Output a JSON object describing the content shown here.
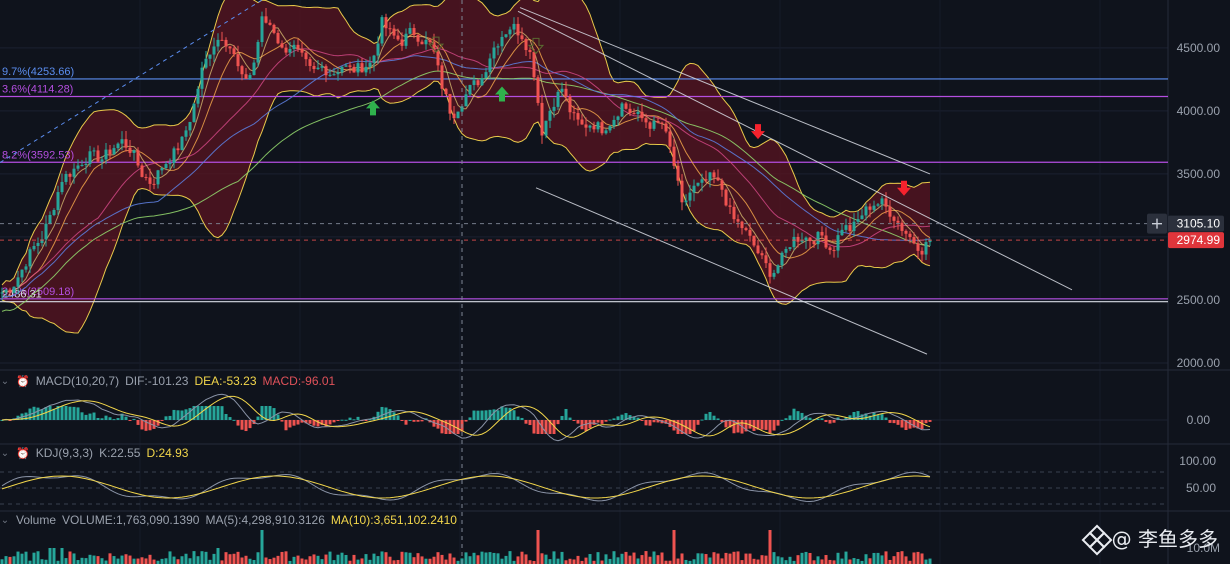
{
  "chart_data": {
    "type": "candlestick",
    "price_axis": {
      "ticks": [
        4500,
        4000,
        3500,
        3000,
        2500,
        2000
      ],
      "tick_labels": [
        "4500.00",
        "4000.00",
        "3500.00",
        "3000.00",
        "2500.00",
        "2000.00"
      ],
      "range": [
        1960,
        4880
      ]
    },
    "price_badges": [
      {
        "value": 3105.1,
        "label": "3105.10",
        "style": "crosshair"
      },
      {
        "value": 2974.99,
        "label": "2974.99",
        "style": "last"
      }
    ],
    "fib_levels": [
      {
        "label": "9.7%(4253.66)",
        "value": 4253.66,
        "color": "#5b8def"
      },
      {
        "label": "3.6%(4114.28)",
        "value": 4114.28,
        "color": "#b44ee0"
      },
      {
        "label": "8.2%(3592.53)",
        "value": 3592.53,
        "color": "#b44ee0"
      },
      {
        "label": "3.6%(2509.18)",
        "value": 2509.18,
        "color": "#b44ee0"
      },
      {
        "label": "2486.31",
        "value": 2486.31,
        "color": "#d8dce4"
      }
    ],
    "trend_channel": {
      "upper": [
        [
          518,
          4790
        ],
        [
          1072,
          2580
        ]
      ],
      "lower": [
        [
          536,
          3390
        ],
        [
          927,
          2070
        ]
      ],
      "upper2": [
        [
          520,
          4820
        ],
        [
          930,
          3500
        ]
      ]
    },
    "signals": [
      {
        "type": "buy",
        "x": 373,
        "value": 4020
      },
      {
        "type": "buy",
        "x": 502,
        "value": 4130
      },
      {
        "type": "sell",
        "x": 758,
        "value": 3840
      },
      {
        "type": "sell",
        "x": 904,
        "value": 3390
      },
      {
        "type": "sell",
        "x": 436,
        "value": 4530
      },
      {
        "type": "sell",
        "x": 536,
        "value": 4520
      }
    ],
    "price_path": [
      [
        2,
        2560
      ],
      [
        12,
        2600
      ],
      [
        22,
        2740
      ],
      [
        32,
        2900
      ],
      [
        42,
        3000
      ],
      [
        52,
        3200
      ],
      [
        62,
        3460
      ],
      [
        72,
        3520
      ],
      [
        82,
        3600
      ],
      [
        92,
        3650
      ],
      [
        102,
        3620
      ],
      [
        112,
        3700
      ],
      [
        122,
        3760
      ],
      [
        132,
        3680
      ],
      [
        142,
        3500
      ],
      [
        152,
        3420
      ],
      [
        162,
        3560
      ],
      [
        172,
        3640
      ],
      [
        182,
        3760
      ],
      [
        192,
        3980
      ],
      [
        202,
        4320
      ],
      [
        212,
        4520
      ],
      [
        222,
        4600
      ],
      [
        232,
        4480
      ],
      [
        242,
        4250
      ],
      [
        252,
        4300
      ],
      [
        262,
        4720
      ],
      [
        272,
        4680
      ],
      [
        282,
        4480
      ],
      [
        292,
        4520
      ],
      [
        302,
        4420
      ],
      [
        312,
        4300
      ],
      [
        322,
        4350
      ],
      [
        332,
        4290
      ],
      [
        342,
        4360
      ],
      [
        352,
        4320
      ],
      [
        362,
        4350
      ],
      [
        372,
        4380
      ],
      [
        382,
        4700
      ],
      [
        392,
        4600
      ],
      [
        402,
        4550
      ],
      [
        412,
        4640
      ],
      [
        422,
        4560
      ],
      [
        432,
        4520
      ],
      [
        442,
        4200
      ],
      [
        452,
        3960
      ],
      [
        462,
        4080
      ],
      [
        472,
        4200
      ],
      [
        482,
        4260
      ],
      [
        492,
        4480
      ],
      [
        502,
        4600
      ],
      [
        512,
        4680
      ],
      [
        522,
        4600
      ],
      [
        532,
        4420
      ],
      [
        542,
        3840
      ],
      [
        552,
        4050
      ],
      [
        562,
        4180
      ],
      [
        572,
        3960
      ],
      [
        582,
        3880
      ],
      [
        592,
        3900
      ],
      [
        602,
        3860
      ],
      [
        612,
        3920
      ],
      [
        622,
        4050
      ],
      [
        632,
        3980
      ],
      [
        642,
        3940
      ],
      [
        652,
        3880
      ],
      [
        662,
        3900
      ],
      [
        672,
        3650
      ],
      [
        682,
        3240
      ],
      [
        692,
        3380
      ],
      [
        702,
        3420
      ],
      [
        712,
        3480
      ],
      [
        722,
        3380
      ],
      [
        732,
        3150
      ],
      [
        742,
        3080
      ],
      [
        752,
        2960
      ],
      [
        762,
        2820
      ],
      [
        772,
        2700
      ],
      [
        782,
        2830
      ],
      [
        792,
        2980
      ],
      [
        802,
        3000
      ],
      [
        812,
        2980
      ],
      [
        822,
        3010
      ],
      [
        832,
        2880
      ],
      [
        842,
        3080
      ],
      [
        852,
        3060
      ],
      [
        862,
        3180
      ],
      [
        872,
        3260
      ],
      [
        882,
        3270
      ],
      [
        892,
        3180
      ],
      [
        902,
        3070
      ],
      [
        912,
        2980
      ],
      [
        922,
        2900
      ],
      [
        930,
        2975
      ]
    ],
    "macd": {
      "label": "MACD(10,20,7)",
      "dif": "DIF:-101.23",
      "dea": "DEA:-53.23",
      "macd": "MACD:-96.01",
      "tick_labels": [
        "0.00"
      ],
      "range": [
        -160,
        160
      ],
      "zero": 0
    },
    "kdj": {
      "label": "KDJ(9,3,3)",
      "k": "K:22.55",
      "d": "D:24.93",
      "tick_labels": [
        "100.00",
        "50.00"
      ],
      "range": [
        10,
        110
      ]
    },
    "volume": {
      "label": "Volume",
      "volume": "VOLUME:1,763,090.1390",
      "ma5": "MA(5):4,298,910.3126",
      "ma10": "MA(10):3,651,102.2410",
      "tick_label": "10.0M"
    },
    "colors": {
      "up": "#26a69a",
      "down": "#ef5350",
      "bb_fill": "#5a1420",
      "bb_line": "#e8c94a",
      "fib_blue": "#5b8def",
      "fib_purple": "#b44ee0",
      "ma_long": "#8fd16a",
      "ma_mid": "#5b7bd8",
      "channel": "#d8dce4"
    }
  },
  "watermark": {
    "text": "@ 李鱼多多",
    "icon": "diamond-logo-icon"
  }
}
